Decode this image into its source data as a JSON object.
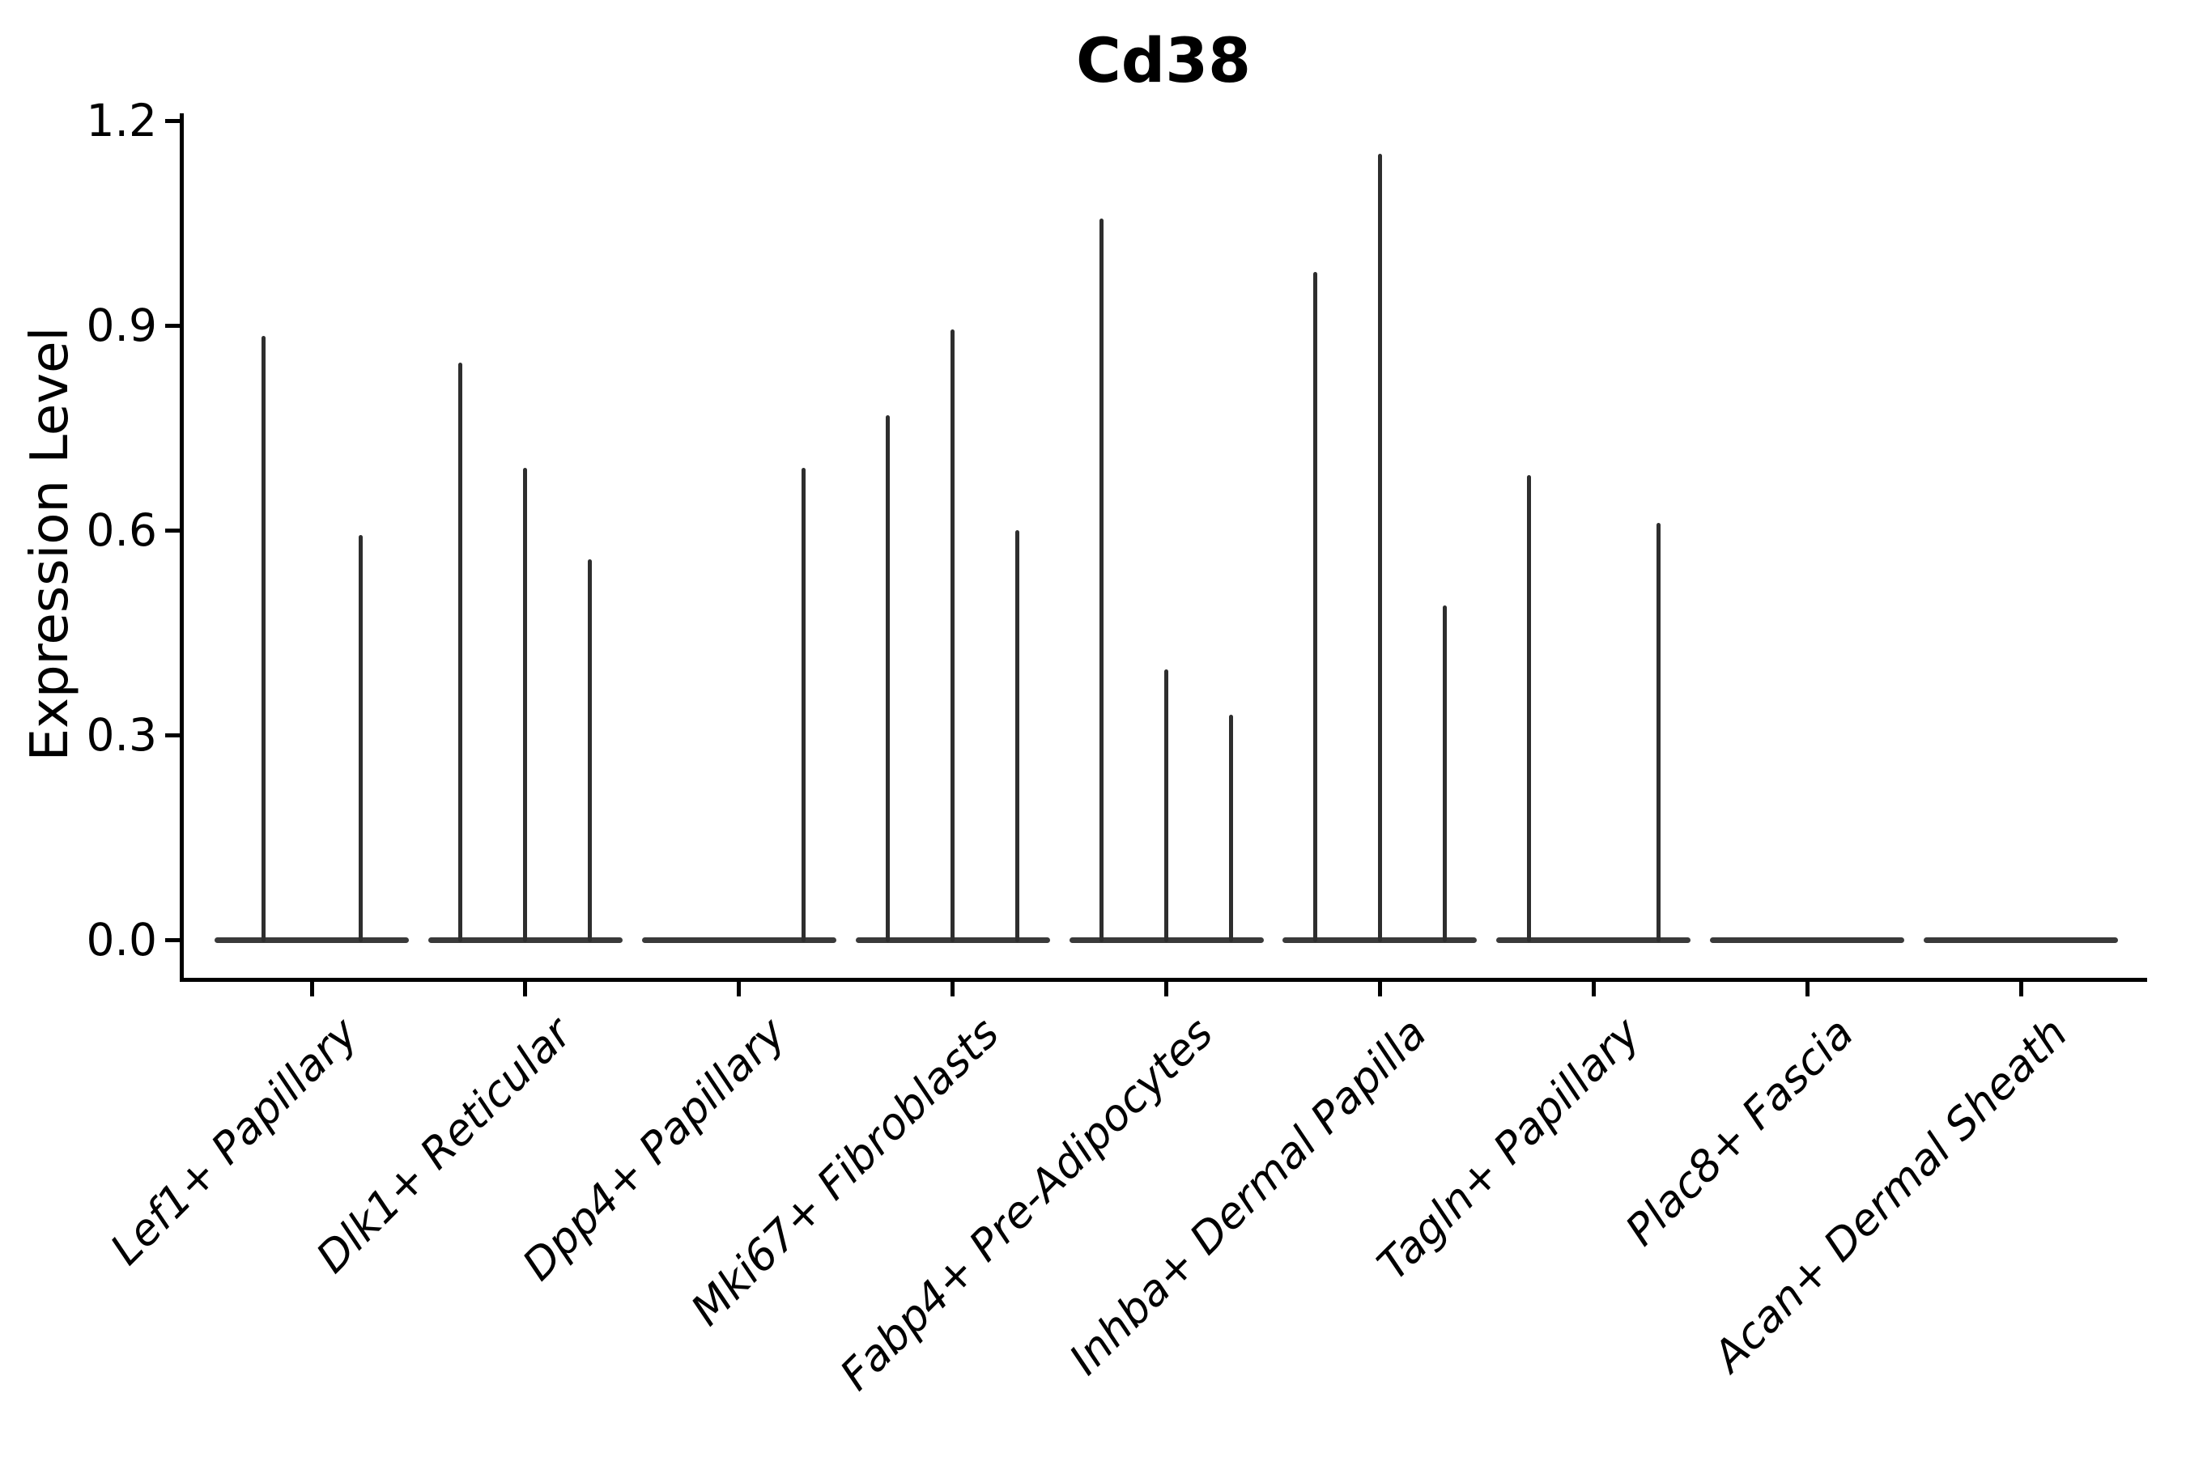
{
  "title": "Cd38",
  "axes": {
    "ylabel": "Expression Level"
  },
  "colors": {
    "axis": "#000000",
    "violin_line": "#2e2e2e",
    "violin_base": "#3a3a3a",
    "background": "#ffffff"
  },
  "chart_data": {
    "type": "violin",
    "title": "Cd38",
    "xlabel": "",
    "ylabel": "Expression Level",
    "ylim": [
      -0.06,
      1.21
    ],
    "yticks": [
      0.0,
      0.3,
      0.6,
      0.9,
      1.2
    ],
    "ytick_labels": [
      "0.0",
      "0.3",
      "0.6",
      "0.9",
      "1.2"
    ],
    "grid": false,
    "legend": "none",
    "x_tick_rotation_deg": 45,
    "categories": [
      "Lef1+ Papillary",
      "Dlk1+ Reticular",
      "Dpp4+ Papillary",
      "Mki67+ Fibroblasts",
      "Fabp4+ Pre-Adipocytes",
      "Inhba+ Dermal Papilla",
      "Tagln+ Papillary",
      "Plac8+ Fascia",
      "Acan+ Dermal Sheath"
    ],
    "description": "Violin plot of expression; each category shows violins collapsed to a flat base at 0 with thin vertical tail spikes whose tops mark the maximum expression value.",
    "groups": [
      {
        "label": "Lef1+ Papillary",
        "violins": [
          {
            "pos": 0.25,
            "max": 0.885
          },
          {
            "pos": 0.75,
            "max": 0.593
          }
        ]
      },
      {
        "label": "Dlk1+ Reticular",
        "violins": [
          {
            "pos": 0.167,
            "max": 0.846
          },
          {
            "pos": 0.5,
            "max": 0.691
          },
          {
            "pos": 0.833,
            "max": 0.557
          }
        ]
      },
      {
        "label": "Dpp4+ Papillary",
        "violins": [
          {
            "pos": 0.167,
            "max": 0
          },
          {
            "pos": 0.5,
            "max": 0
          },
          {
            "pos": 0.833,
            "max": 0.691
          }
        ]
      },
      {
        "label": "Mki67+ Fibroblasts",
        "violins": [
          {
            "pos": 0.167,
            "max": 0.768
          },
          {
            "pos": 0.5,
            "max": 0.894
          },
          {
            "pos": 0.833,
            "max": 0.6
          }
        ]
      },
      {
        "label": "Fabp4+ Pre-Adipocytes",
        "violins": [
          {
            "pos": 0.167,
            "max": 1.057
          },
          {
            "pos": 0.5,
            "max": 0.396
          },
          {
            "pos": 0.833,
            "max": 0.33
          }
        ]
      },
      {
        "label": "Inhba+ Dermal Papilla",
        "violins": [
          {
            "pos": 0.167,
            "max": 0.978
          },
          {
            "pos": 0.5,
            "max": 1.151
          },
          {
            "pos": 0.833,
            "max": 0.49
          }
        ]
      },
      {
        "label": "Tagln+ Papillary",
        "violins": [
          {
            "pos": 0.167,
            "max": 0.681
          },
          {
            "pos": 0.5,
            "max": 0
          },
          {
            "pos": 0.833,
            "max": 0.611
          }
        ]
      },
      {
        "label": "Plac8+ Fascia",
        "violins": [
          {
            "pos": 0.167,
            "max": 0
          },
          {
            "pos": 0.5,
            "max": 0
          },
          {
            "pos": 0.833,
            "max": 0
          }
        ]
      },
      {
        "label": "Acan+ Dermal Sheath",
        "violins": [
          {
            "pos": 0.167,
            "max": 0
          },
          {
            "pos": 0.5,
            "max": 0
          },
          {
            "pos": 0.833,
            "max": 0
          }
        ]
      }
    ]
  }
}
